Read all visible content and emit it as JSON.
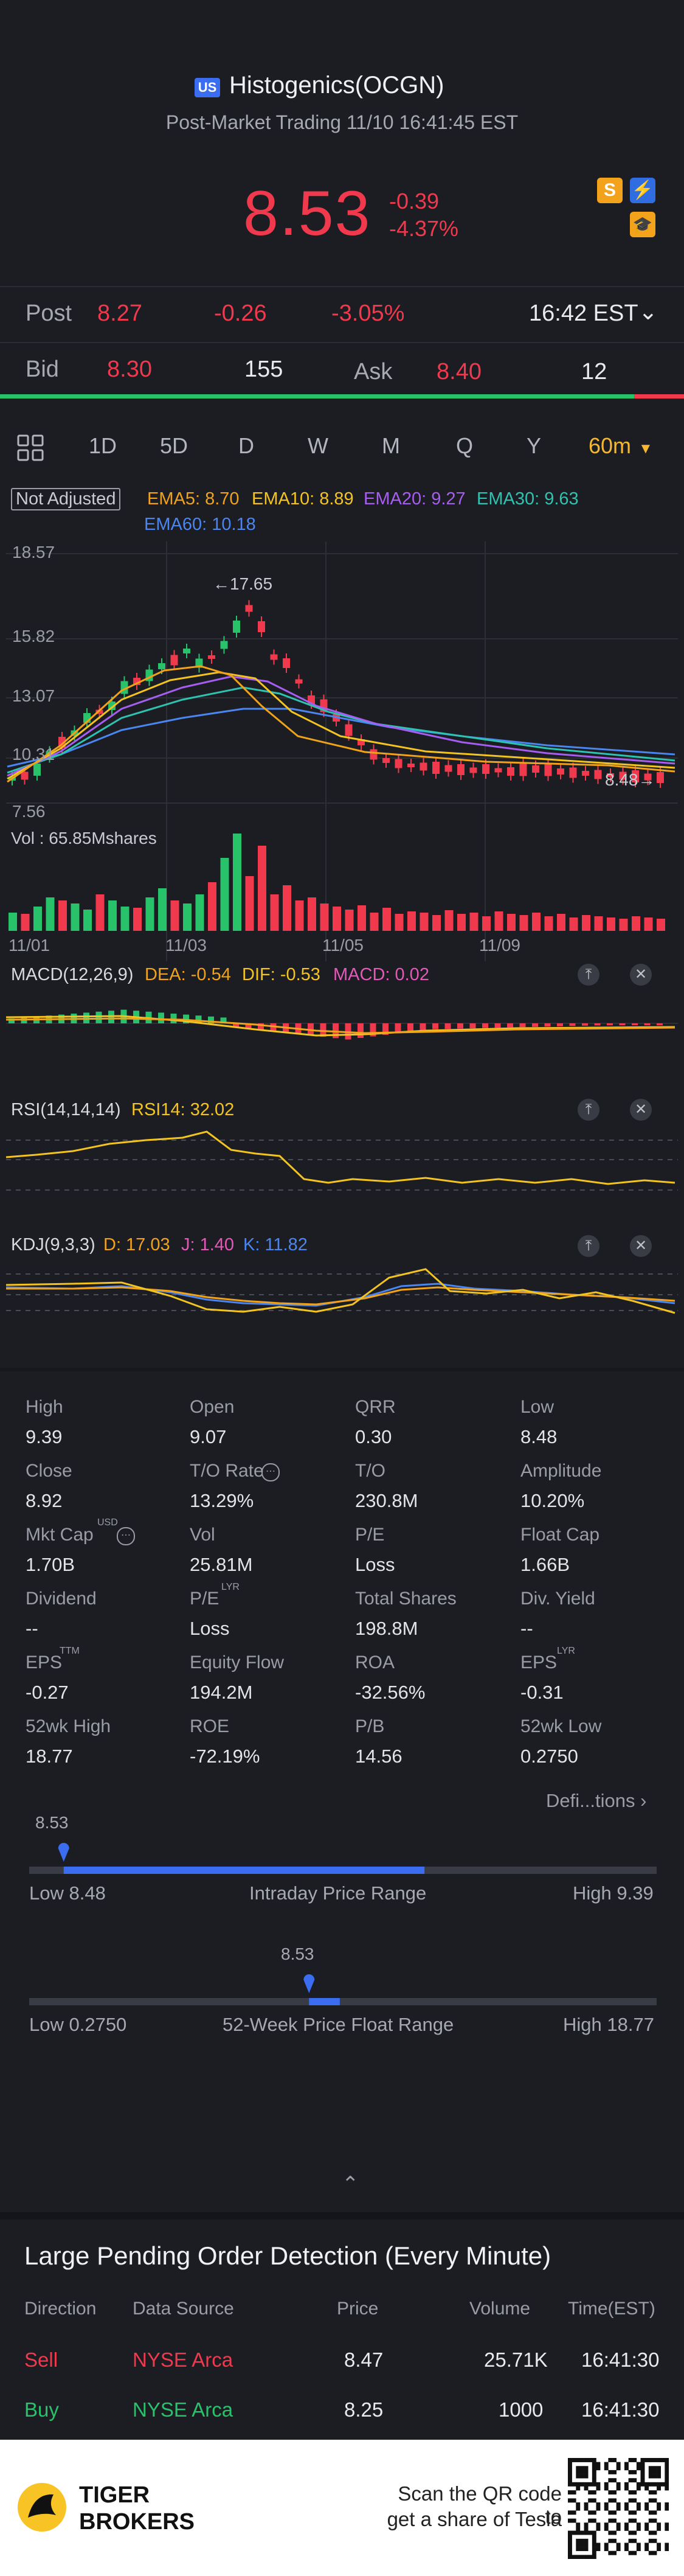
{
  "header": {
    "market_badge": "US",
    "title": "Histogenics(OCGN)",
    "subtitle": "Post-Market Trading 11/10 16:41:45 EST",
    "price": "8.53",
    "change": "-0.39",
    "change_pct": "-4.37%",
    "icon_s": "S"
  },
  "post_row": {
    "label": "Post",
    "price": "8.27",
    "change": "-0.26",
    "change_pct": "-3.05%",
    "time": "16:42 EST"
  },
  "bid_row": {
    "bid_label": "Bid",
    "bid_price": "8.30",
    "bid_size": "155",
    "ask_label": "Ask",
    "ask_price": "8.40",
    "ask_size": "12",
    "bid_fraction": 0.927
  },
  "periods": [
    "1D",
    "5D",
    "D",
    "W",
    "M",
    "Q",
    "Y",
    "60m"
  ],
  "active_period": "60m",
  "chart": {
    "adjust_label": "Not Adjusted",
    "ema5": "EMA5: 8.70",
    "ema10": "EMA10: 8.89",
    "ema20": "EMA20: 9.27",
    "ema30": "EMA30: 9.63",
    "ema60": "EMA60: 10.18",
    "y_top": "18.57",
    "y_2": "15.82",
    "y_3": "13.07",
    "y_4": "10.31",
    "y_bottom": "7.56",
    "high_marker": "17.65",
    "last_marker": "8.48",
    "vol_label": "Vol  : 65.85Mshares",
    "dates": [
      "11/01",
      "11/03",
      "11/05",
      "11/09"
    ],
    "macd_label": "MACD(12,26,9)",
    "macd_dea": "DEA: -0.54",
    "macd_dif": "DIF: -0.53",
    "macd_val": "MACD: 0.02",
    "rsi_label": "RSI(14,14,14)",
    "rsi_val": "RSI14: 32.02",
    "kdj_label": "KDJ(9,3,3)",
    "kdj_d": "D: 17.03",
    "kdj_j": "J: 1.40",
    "kdj_k": "K: 11.82"
  },
  "stats": [
    {
      "label": "High",
      "value": "9.39"
    },
    {
      "label": "Open",
      "value": "9.07"
    },
    {
      "label": "QRR",
      "value": "0.30"
    },
    {
      "label": "Low",
      "value": "8.48"
    },
    {
      "label": "Close",
      "value": "8.92"
    },
    {
      "label": "T/O Rate",
      "value": "13.29%"
    },
    {
      "label": "T/O",
      "value": "230.8M"
    },
    {
      "label": "Amplitude",
      "value": "10.20%"
    },
    {
      "label": "Mkt Cap",
      "value": "1.70B"
    },
    {
      "label": "Vol",
      "value": "25.81M"
    },
    {
      "label": "P/E",
      "value": "Loss"
    },
    {
      "label": "Float Cap",
      "value": "1.66B"
    },
    {
      "label": "Dividend",
      "value": "--"
    },
    {
      "label": "P/E",
      "value": "Loss"
    },
    {
      "label": "Total Shares",
      "value": "198.8M"
    },
    {
      "label": "Div. Yield",
      "value": "--"
    },
    {
      "label": "EPS",
      "value": "-0.27"
    },
    {
      "label": "Equity Flow",
      "value": "194.2M"
    },
    {
      "label": "ROA",
      "value": "-32.56%"
    },
    {
      "label": "EPS",
      "value": "-0.31"
    },
    {
      "label": "52wk High",
      "value": "18.77"
    },
    {
      "label": "ROE",
      "value": "-72.19%"
    },
    {
      "label": "P/B",
      "value": "14.56"
    },
    {
      "label": "52wk Low",
      "value": "0.2750"
    }
  ],
  "superscripts": {
    "mktcap": "USD",
    "pe": "LYR",
    "eps1": "TTM",
    "eps2": "LYR"
  },
  "definitions_link": "Defi...tions",
  "intraday_range": {
    "current": "8.53",
    "low": "Low 8.48",
    "title": "Intraday Price Range",
    "high": "High 9.39",
    "current_fraction": 0.055,
    "fill_start": 0.055,
    "fill_end": 0.63
  },
  "week52_range": {
    "current": "8.53",
    "low": "Low 0.2750",
    "title": "52-Week Price Float Range",
    "high": "High 18.77",
    "current_fraction": 0.446,
    "fill_start": 0.446,
    "fill_end": 0.495
  },
  "pending_orders": {
    "title": "Large Pending Order Detection (Every Minute)",
    "headers": [
      "Direction",
      "Data Source",
      "Price",
      "Volume",
      "Time(EST)"
    ],
    "rows": [
      {
        "direction": "Sell",
        "source": "NYSE Arca",
        "price": "8.47",
        "volume": "25.71K",
        "time": "16:41:30"
      },
      {
        "direction": "Buy",
        "source": "NYSE Arca",
        "price": "8.25",
        "volume": "1000",
        "time": "16:41:30"
      }
    ]
  },
  "footer": {
    "brand_line1": "TIGER",
    "brand_line2": "BROKERS",
    "promo_line1": "Scan the QR code to",
    "promo_line2": "get a share of Tesla"
  },
  "colors": {
    "up": "#f0394d",
    "down": "#27c26a",
    "accent": "#f3b731",
    "range_bar": "#3b6df0"
  }
}
